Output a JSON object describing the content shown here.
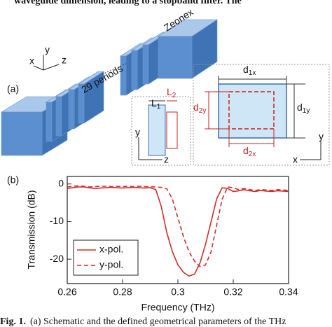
{
  "header_text": "waveguide dimension, leading to a stopband filter. The",
  "schematic": {
    "panel_label": "(a)",
    "material": "Zeonex",
    "periods": "29 periods",
    "main_axes": {
      "x": "x",
      "y": "y",
      "z": "z"
    },
    "side_view": {
      "axes": {
        "y": "y",
        "z": "z"
      },
      "L1": {
        "main": "L",
        "sub": "1"
      },
      "L2": {
        "main": "L",
        "sub": "2"
      }
    },
    "front_view": {
      "axes": {
        "y": "y",
        "x": "x"
      },
      "d1x": {
        "main": "d",
        "sub": "1x"
      },
      "d1y": {
        "main": "d",
        "sub": "1y"
      },
      "d2x": {
        "main": "d",
        "sub": "2x"
      },
      "d2y": {
        "main": "d",
        "sub": "2y"
      }
    }
  },
  "chart_data": {
    "type": "line",
    "panel_label": "(b)",
    "x_label": "Frequency (THz)",
    "y_label": "Transmission (dB)",
    "xlim": [
      0.26,
      0.34
    ],
    "xticks": [
      0.26,
      0.28,
      0.3,
      0.32,
      0.34
    ],
    "ylim": [
      -26.5,
      2
    ],
    "yticks": [
      -20,
      -10,
      0
    ],
    "legend": "lower left",
    "x": [
      0.26,
      0.262,
      0.264,
      0.266,
      0.268,
      0.27,
      0.272,
      0.274,
      0.276,
      0.278,
      0.28,
      0.282,
      0.284,
      0.286,
      0.288,
      0.29,
      0.292,
      0.294,
      0.296,
      0.298,
      0.3,
      0.302,
      0.304,
      0.306,
      0.308,
      0.31,
      0.312,
      0.314,
      0.316,
      0.318,
      0.32,
      0.322,
      0.324,
      0.326,
      0.328,
      0.33,
      0.332,
      0.334,
      0.336,
      0.338,
      0.34
    ],
    "series": [
      {
        "name": "x-pol.",
        "color": "#d42a2a",
        "line_style": "solid",
        "values": [
          -1.2,
          -1.0,
          -0.8,
          -0.8,
          -1.0,
          -1.2,
          -1.1,
          -1.0,
          -0.9,
          -1.0,
          -1.1,
          -1.0,
          -0.9,
          -1.0,
          -1.1,
          -1.0,
          -1.5,
          -6,
          -13,
          -18,
          -21.5,
          -23.5,
          -24.5,
          -24,
          -21,
          -16,
          -10,
          -4,
          -1,
          -1.2,
          -2.0,
          -1.8,
          -1.5,
          -1.8,
          -2.0,
          -1.7,
          -1.9,
          -2.0,
          -1.8,
          -1.9,
          -2.0
        ]
      },
      {
        "name": "y-pol.",
        "color": "#d42a2a",
        "line_style": "dashed",
        "values": [
          -0.8,
          -0.6,
          -0.5,
          -0.6,
          -0.8,
          -0.7,
          -0.6,
          -0.6,
          -0.7,
          -0.6,
          -0.7,
          -0.6,
          -0.7,
          -0.6,
          -0.7,
          -0.7,
          -0.8,
          -0.9,
          -1.3,
          -4,
          -9,
          -14,
          -18,
          -20.5,
          -22,
          -21.5,
          -18,
          -11,
          -4,
          -0.8,
          -1.0,
          -1.5,
          -1.2,
          -1.5,
          -1.7,
          -1.5,
          -1.6,
          -1.7,
          -1.5,
          -1.6,
          -1.7
        ]
      }
    ]
  },
  "caption": {
    "label": "Fig. 1.",
    "text": "(a) Schematic and the defined geometrical parameters of the THz"
  }
}
